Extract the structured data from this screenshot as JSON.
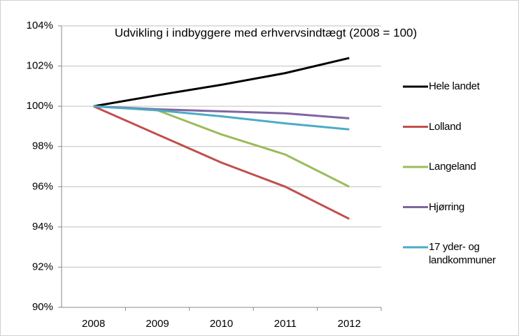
{
  "chart_data": {
    "type": "line",
    "title": "Udvikling i indbyggere med erhvervsindtægt (2008 = 100)",
    "categories": [
      "2008",
      "2009",
      "2010",
      "2011",
      "2012"
    ],
    "series": [
      {
        "name": "Hele landet",
        "color": "#000000",
        "values": [
          100,
          100.55,
          101.07,
          101.65,
          102.4
        ]
      },
      {
        "name": "Lolland",
        "color": "#c0504d",
        "values": [
          100,
          98.6,
          97.2,
          96.0,
          94.4
        ]
      },
      {
        "name": "Langeland",
        "color": "#9bbb59",
        "values": [
          100,
          99.8,
          98.6,
          97.6,
          96.0
        ]
      },
      {
        "name": "Hjørring",
        "color": "#8064a2",
        "values": [
          100,
          99.85,
          99.75,
          99.65,
          99.4
        ]
      },
      {
        "name": "17 yder- og landkommuner",
        "color": "#4bacc6",
        "values": [
          100,
          99.8,
          99.5,
          99.15,
          98.85
        ]
      }
    ],
    "ylim": [
      90,
      104
    ],
    "yticks": [
      {
        "value": 90,
        "label": "90%"
      },
      {
        "value": 92,
        "label": "92%"
      },
      {
        "value": 94,
        "label": "94%"
      },
      {
        "value": 96,
        "label": "96%"
      },
      {
        "value": 98,
        "label": "98%"
      },
      {
        "value": 100,
        "label": "100%"
      },
      {
        "value": 102,
        "label": "102%"
      },
      {
        "value": 104,
        "label": "104%"
      }
    ],
    "grid": true,
    "legend": "right"
  }
}
